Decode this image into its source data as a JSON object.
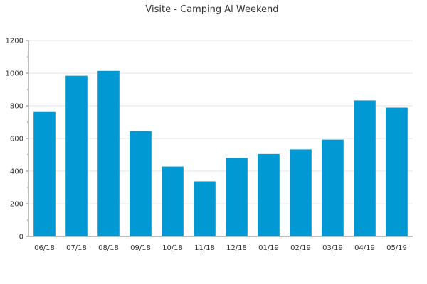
{
  "chart_data": {
    "type": "bar",
    "title": "Visite - Camping Al Weekend",
    "xlabel": "",
    "ylabel": "",
    "categories": [
      "06/18",
      "07/18",
      "08/18",
      "09/18",
      "10/18",
      "11/18",
      "12/18",
      "01/19",
      "02/19",
      "03/19",
      "04/19",
      "05/19"
    ],
    "values": [
      762,
      984,
      1014,
      645,
      428,
      337,
      481,
      505,
      533,
      593,
      833,
      789
    ],
    "ylim": [
      0,
      1200
    ],
    "yticks": [
      0,
      200,
      400,
      600,
      800,
      1000,
      1200
    ],
    "grid": true,
    "legend": "none",
    "colors": {
      "bar": "#0099d4",
      "grid": "#e6e6e6",
      "axis": "#808080",
      "text": "#333333"
    }
  }
}
